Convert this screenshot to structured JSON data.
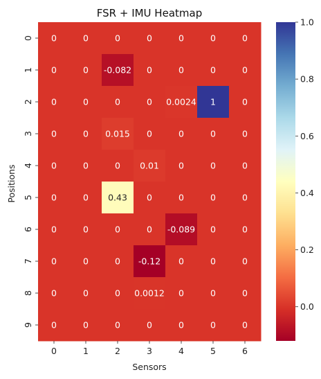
{
  "chart_data": {
    "type": "heatmap",
    "title": "FSR + IMU Heatmap",
    "xlabel": "Sensors",
    "ylabel": "Positions",
    "x_categories": [
      "0",
      "1",
      "2",
      "3",
      "4",
      "5",
      "6"
    ],
    "y_categories": [
      "0",
      "1",
      "2",
      "3",
      "4",
      "5",
      "6",
      "7",
      "8",
      "9"
    ],
    "values": [
      [
        0,
        0,
        0,
        0,
        0,
        0,
        0
      ],
      [
        0,
        0,
        -0.082,
        0,
        0,
        0,
        0
      ],
      [
        0,
        0,
        0,
        0,
        0.0024,
        1,
        0
      ],
      [
        0,
        0,
        0.015,
        0,
        0,
        0,
        0
      ],
      [
        0,
        0,
        0,
        0.01,
        0,
        0,
        0
      ],
      [
        0,
        0,
        0.43,
        0,
        0,
        0,
        0
      ],
      [
        0,
        0,
        0,
        0,
        -0.089,
        0,
        0
      ],
      [
        0,
        0,
        0,
        -0.12,
        0,
        0,
        0
      ],
      [
        0,
        0,
        0,
        0.0012,
        0,
        0,
        0
      ],
      [
        0,
        0,
        0,
        0,
        0,
        0,
        0
      ]
    ],
    "cell_labels": [
      [
        "0",
        "0",
        "0",
        "0",
        "0",
        "0",
        "0"
      ],
      [
        "0",
        "0",
        "-0.082",
        "0",
        "0",
        "0",
        "0"
      ],
      [
        "0",
        "0",
        "0",
        "0",
        "0.0024",
        "1",
        "0"
      ],
      [
        "0",
        "0",
        "0.015",
        "0",
        "0",
        "0",
        "0"
      ],
      [
        "0",
        "0",
        "0",
        "0.01",
        "0",
        "0",
        "0"
      ],
      [
        "0",
        "0",
        "0.43",
        "0",
        "0",
        "0",
        "0"
      ],
      [
        "0",
        "0",
        "0",
        "0",
        "-0.089",
        "0",
        "0"
      ],
      [
        "0",
        "0",
        "0",
        "-0.12",
        "0",
        "0",
        "0"
      ],
      [
        "0",
        "0",
        "0",
        "0.0012",
        "0",
        "0",
        "0"
      ],
      [
        "0",
        "0",
        "0",
        "0",
        "0",
        "0",
        "0"
      ]
    ],
    "colormap": "RdYlBu",
    "color_range": [
      -0.12,
      1.0
    ],
    "colorbar_ticks": [
      1.0,
      0.8,
      0.6,
      0.4,
      0.2,
      0.0
    ],
    "colorbar_tick_labels": [
      "1.0",
      "0.8",
      "0.6",
      "0.4",
      "0.2",
      "0.0"
    ],
    "colormap_stops": [
      "#a50026",
      "#d73027",
      "#f46d43",
      "#fdae61",
      "#fee090",
      "#ffffbf",
      "#e0f3f8",
      "#abd9e9",
      "#74add1",
      "#4575b4",
      "#313695"
    ],
    "grid": false
  }
}
